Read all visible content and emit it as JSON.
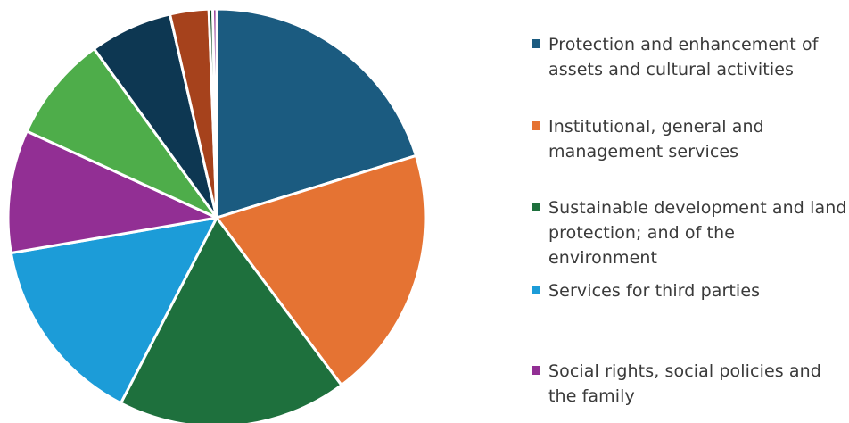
{
  "chart_data": {
    "type": "pie",
    "title": "",
    "legend_position": "right",
    "slices": [
      {
        "name": "Protection and enhancement of assets and cultural activities",
        "value": 20.2,
        "color": "#1b5b80",
        "in_legend": true
      },
      {
        "name": "Institutional, general and management services",
        "value": 19.6,
        "color": "#e57333",
        "in_legend": true
      },
      {
        "name": "Sustainable development and land protection; and of the environment",
        "value": 17.8,
        "color": "#1e703d",
        "in_legend": true
      },
      {
        "name": "Services for third parties",
        "value": 14.7,
        "color": "#1c9cd8",
        "in_legend": true
      },
      {
        "name": "Social rights, social policies and the family",
        "value": 9.5,
        "color": "#922f94",
        "in_legend": true
      },
      {
        "name": "",
        "value": 8.2,
        "color": "#4ead4a",
        "in_legend": false
      },
      {
        "name": "",
        "value": 6.4,
        "color": "#0d3752",
        "in_legend": false
      },
      {
        "name": "",
        "value": 3.0,
        "color": "#a6421c",
        "in_legend": false
      },
      {
        "name": "",
        "value": 0.3,
        "color": "#0c4a22",
        "in_legend": false
      },
      {
        "name": "",
        "value": 0.3,
        "color": "#8a2a8c",
        "in_legend": false
      }
    ]
  }
}
